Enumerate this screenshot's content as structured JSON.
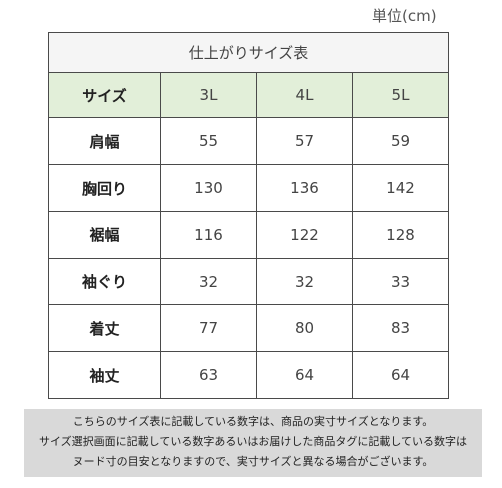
{
  "unit_label": "単位(cm)",
  "table": {
    "title": "仕上がりサイズ表",
    "header_label": "サイズ",
    "sizes": [
      "3L",
      "4L",
      "5L"
    ],
    "rows": [
      {
        "label": "肩幅",
        "values": [
          "55",
          "57",
          "59"
        ]
      },
      {
        "label": "胸回り",
        "values": [
          "130",
          "136",
          "142"
        ]
      },
      {
        "label": "裾幅",
        "values": [
          "116",
          "122",
          "128"
        ]
      },
      {
        "label": "袖ぐり",
        "values": [
          "32",
          "32",
          "33"
        ]
      },
      {
        "label": "着丈",
        "values": [
          "77",
          "80",
          "83"
        ]
      },
      {
        "label": "袖丈",
        "values": [
          "63",
          "64",
          "64"
        ]
      }
    ]
  },
  "notes": [
    "こちらのサイズ表に記載している数字は、商品の実寸サイズとなります。",
    "サイズ選択画面に記載している数字あるいはお届けした商品タグに記載している数字は",
    "ヌード寸の目安となりますので、実寸サイズと異なる場合がございます。"
  ],
  "colors": {
    "header_bg": "#e2efd9",
    "title_bg": "#f5f5f5",
    "notes_bg": "#d9d9d9",
    "border": "#4a4a4a"
  }
}
